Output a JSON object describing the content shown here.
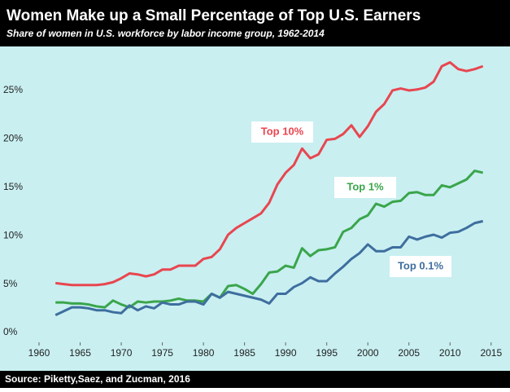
{
  "chart_data": {
    "type": "line",
    "title": "Women Make up a Small Percentage of Top U.S. Earners",
    "subtitle": "Share of women in U.S. workforce by labor income group, 1962-2014",
    "source": "Source: Piketty,Saez, and Zucman, 2016",
    "x": [
      1962,
      1963,
      1964,
      1965,
      1966,
      1967,
      1968,
      1969,
      1970,
      1971,
      1972,
      1973,
      1974,
      1975,
      1976,
      1977,
      1978,
      1979,
      1980,
      1981,
      1982,
      1983,
      1984,
      1985,
      1986,
      1987,
      1988,
      1989,
      1990,
      1991,
      1992,
      1993,
      1994,
      1995,
      1996,
      1997,
      1998,
      1999,
      2000,
      2001,
      2002,
      2003,
      2004,
      2005,
      2006,
      2007,
      2008,
      2009,
      2010,
      2011,
      2012,
      2013,
      2014
    ],
    "series": [
      {
        "name": "Top 10%",
        "color": "#e8464f",
        "values": [
          5.1,
          5.0,
          4.9,
          4.9,
          4.9,
          4.9,
          5.0,
          5.2,
          5.6,
          6.1,
          6.0,
          5.8,
          6.0,
          6.5,
          6.5,
          6.9,
          6.9,
          6.9,
          7.6,
          7.8,
          8.6,
          10.1,
          10.8,
          11.3,
          11.8,
          12.3,
          13.4,
          15.3,
          16.5,
          17.3,
          19.0,
          18.0,
          18.4,
          19.9,
          20.0,
          20.5,
          21.4,
          20.2,
          21.3,
          22.8,
          23.6,
          25.0,
          25.2,
          25.0,
          25.1,
          25.3,
          25.9,
          27.5,
          27.9,
          27.2,
          27.0,
          27.2,
          27.5
        ]
      },
      {
        "name": "Top 1%",
        "color": "#3aa54b",
        "values": [
          3.1,
          3.1,
          3.0,
          3.0,
          2.9,
          2.7,
          2.6,
          3.3,
          2.9,
          2.6,
          3.2,
          3.1,
          3.2,
          3.2,
          3.3,
          3.5,
          3.3,
          3.3,
          3.2,
          4.0,
          3.6,
          4.8,
          4.9,
          4.5,
          4.0,
          5.0,
          6.2,
          6.3,
          6.9,
          6.7,
          8.7,
          7.9,
          8.5,
          8.6,
          8.8,
          10.4,
          10.8,
          11.7,
          12.1,
          13.3,
          13.0,
          13.5,
          13.6,
          14.4,
          14.5,
          14.2,
          14.2,
          15.2,
          15.0,
          15.4,
          15.8,
          16.7,
          16.5
        ]
      },
      {
        "name": "Top 0.1%",
        "color": "#3e6e9e",
        "values": [
          1.8,
          2.2,
          2.6,
          2.6,
          2.5,
          2.3,
          2.3,
          2.1,
          2.0,
          2.8,
          2.3,
          2.7,
          2.5,
          3.1,
          2.9,
          2.9,
          3.2,
          3.2,
          2.9,
          4.0,
          3.6,
          4.2,
          4.0,
          3.8,
          3.6,
          3.4,
          3.0,
          4.0,
          4.0,
          4.7,
          5.1,
          5.7,
          5.3,
          5.3,
          6.1,
          6.8,
          7.6,
          8.2,
          9.1,
          8.4,
          8.4,
          8.8,
          8.8,
          9.9,
          9.6,
          9.9,
          10.1,
          9.8,
          10.3,
          10.4,
          10.8,
          11.3,
          11.5
        ]
      }
    ],
    "xlim": [
      1958,
      2017
    ],
    "xticks": [
      1960,
      1965,
      1970,
      1975,
      1980,
      1985,
      1990,
      1995,
      2000,
      2005,
      2010,
      2015
    ],
    "ylim": [
      -1,
      29.5
    ],
    "yticks": [
      {
        "value": 0,
        "label": "0%"
      },
      {
        "value": 5,
        "label": "5%"
      },
      {
        "value": 10,
        "label": "10%"
      },
      {
        "value": 15,
        "label": "15%"
      },
      {
        "value": 20,
        "label": "20%"
      },
      {
        "value": 25,
        "label": "25%"
      }
    ]
  }
}
